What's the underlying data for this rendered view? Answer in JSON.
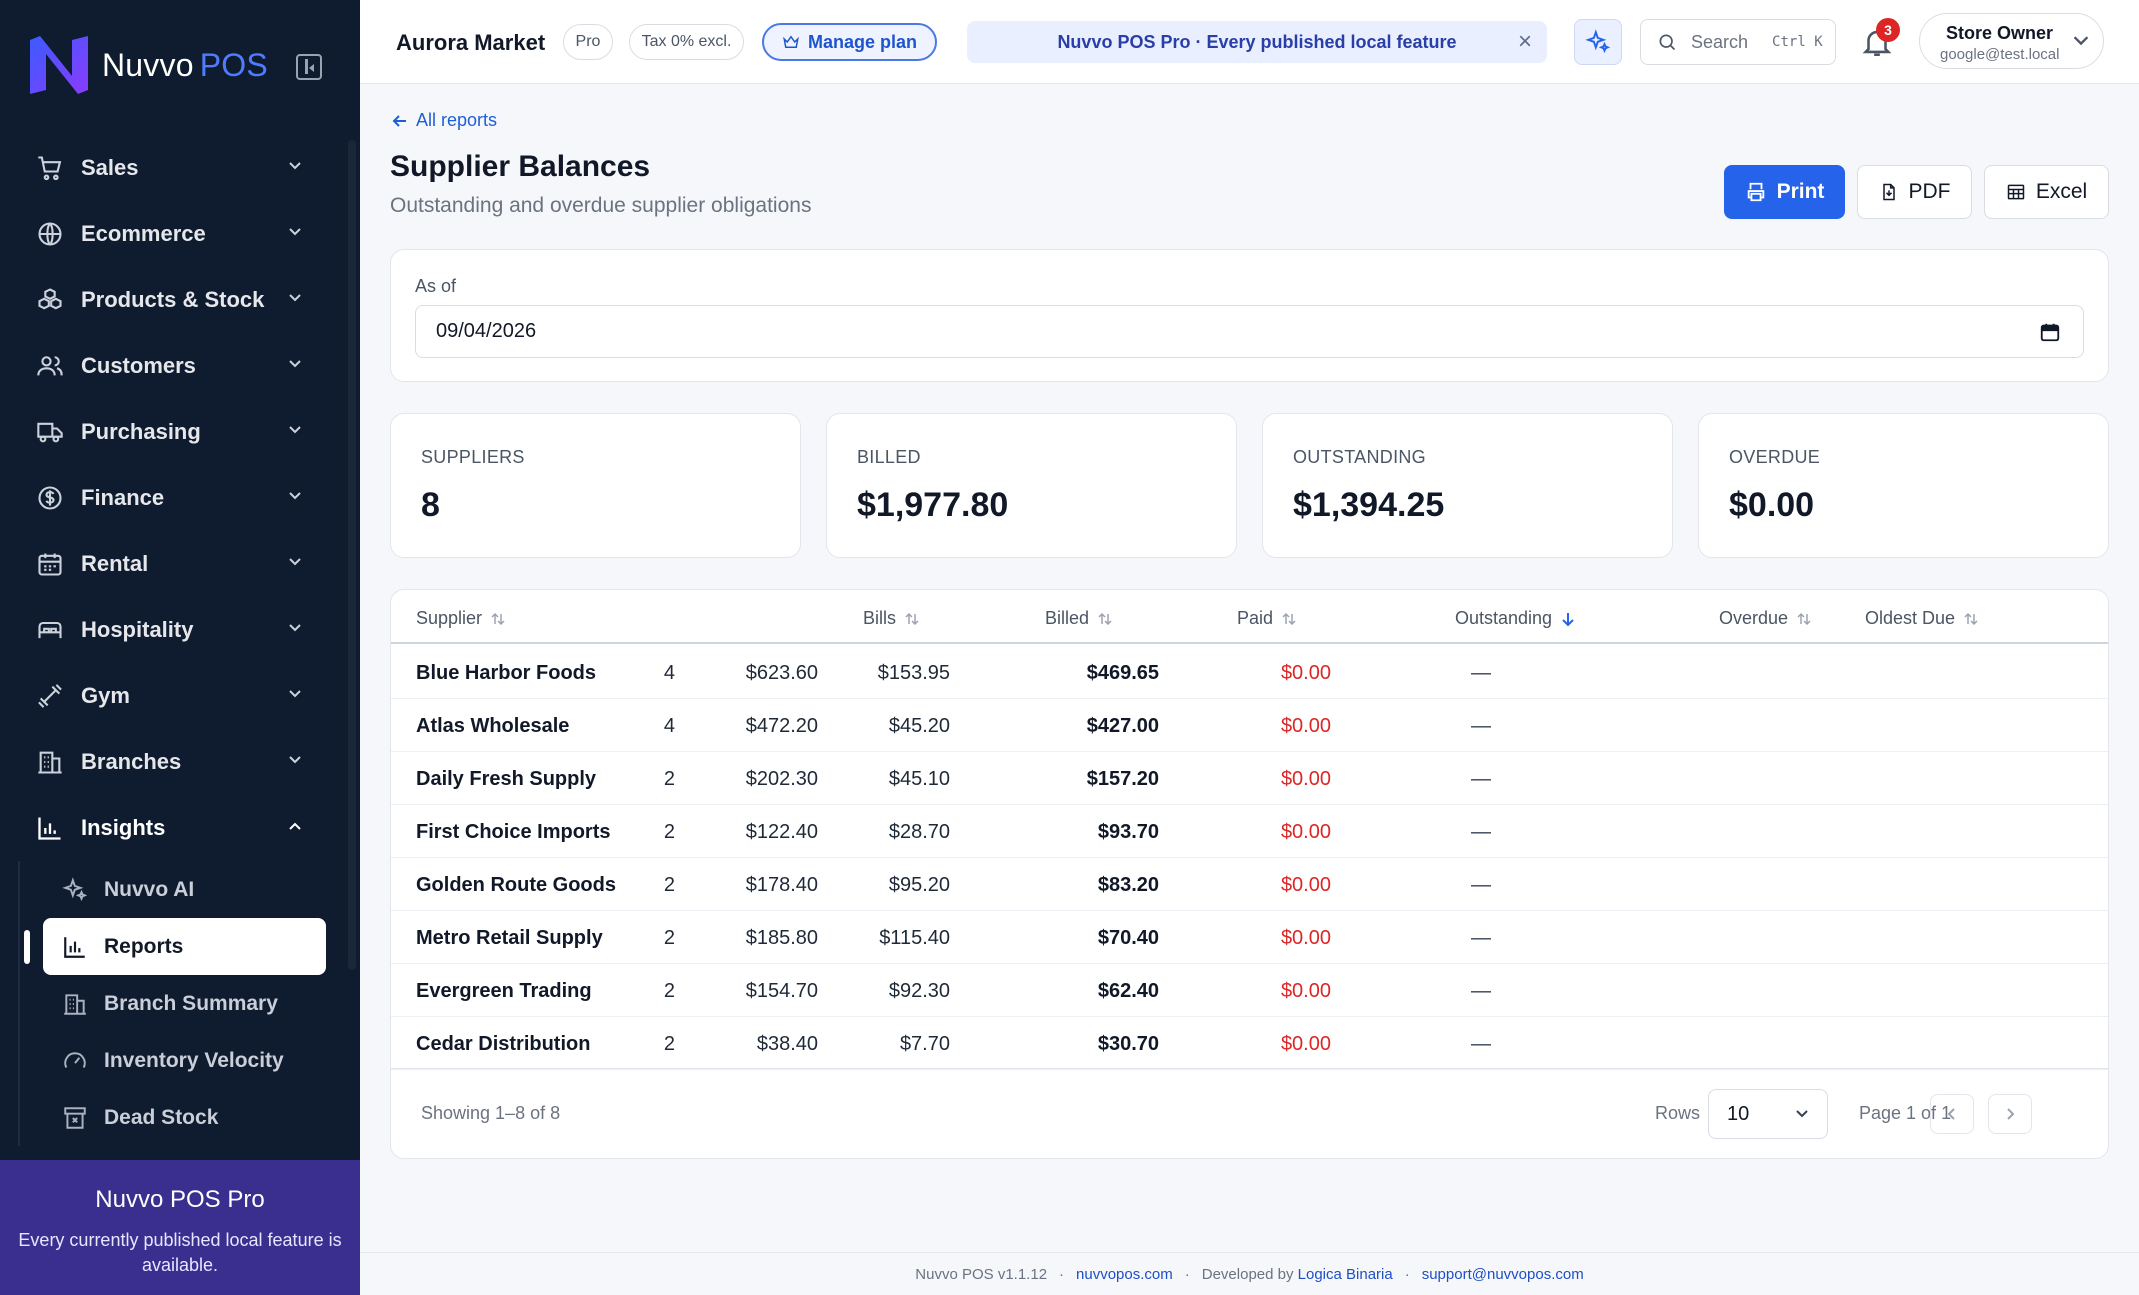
{
  "brand": {
    "name": "Nuvvo",
    "suffix": "POS"
  },
  "sidebar": {
    "items": [
      {
        "label": "Sales",
        "icon": "cart-icon"
      },
      {
        "label": "Ecommerce",
        "icon": "globe-icon"
      },
      {
        "label": "Products & Stock",
        "icon": "boxes-icon"
      },
      {
        "label": "Customers",
        "icon": "users-icon"
      },
      {
        "label": "Purchasing",
        "icon": "truck-icon"
      },
      {
        "label": "Finance",
        "icon": "dollar-icon"
      },
      {
        "label": "Rental",
        "icon": "calendar-icon"
      },
      {
        "label": "Hospitality",
        "icon": "bed-icon"
      },
      {
        "label": "Gym",
        "icon": "dumbbell-icon"
      },
      {
        "label": "Branches",
        "icon": "building-icon"
      },
      {
        "label": "Insights",
        "icon": "chart-icon"
      }
    ],
    "insights_sub": [
      {
        "label": "Nuvvo AI",
        "icon": "sparkles-icon"
      },
      {
        "label": "Reports",
        "icon": "bar-chart-icon"
      },
      {
        "label": "Branch Summary",
        "icon": "building-icon"
      },
      {
        "label": "Inventory Velocity",
        "icon": "gauge-icon"
      },
      {
        "label": "Dead Stock",
        "icon": "archive-x-icon"
      }
    ],
    "promo": {
      "title": "Nuvvo POS Pro",
      "text": "Every currently published local feature is available."
    }
  },
  "topbar": {
    "store": "Aurora Market",
    "plan_pill": "Pro",
    "tax_pill": "Tax 0% excl.",
    "manage_plan": "Manage plan",
    "banner": "Nuvvo POS Pro · Every published local feature",
    "banner_close": "×",
    "search_placeholder": "Search",
    "search_shortcut": "Ctrl K",
    "notifications": "3",
    "user_name": "Store Owner",
    "user_email": "google@test.local"
  },
  "page": {
    "back": "All reports",
    "title": "Supplier Balances",
    "subtitle": "Outstanding and overdue supplier obligations",
    "actions": {
      "print": "Print",
      "pdf": "PDF",
      "excel": "Excel"
    },
    "filter": {
      "label": "As of",
      "value": "09/04/2026"
    }
  },
  "stats": [
    {
      "label": "SUPPLIERS",
      "value": "8"
    },
    {
      "label": "BILLED",
      "value": "$1,977.80"
    },
    {
      "label": "OUTSTANDING",
      "value": "$1,394.25"
    },
    {
      "label": "OVERDUE",
      "value": "$0.00"
    }
  ],
  "table": {
    "columns": [
      "Supplier",
      "Bills",
      "Billed",
      "Paid",
      "Outstanding",
      "Overdue",
      "Oldest Due"
    ],
    "rows": [
      [
        "Blue Harbor Foods",
        "4",
        "$623.60",
        "$153.95",
        "$469.65",
        "$0.00",
        "—"
      ],
      [
        "Atlas Wholesale",
        "4",
        "$472.20",
        "$45.20",
        "$427.00",
        "$0.00",
        "—"
      ],
      [
        "Daily Fresh Supply",
        "2",
        "$202.30",
        "$45.10",
        "$157.20",
        "$0.00",
        "—"
      ],
      [
        "First Choice Imports",
        "2",
        "$122.40",
        "$28.70",
        "$93.70",
        "$0.00",
        "—"
      ],
      [
        "Golden Route Goods",
        "2",
        "$178.40",
        "$95.20",
        "$83.20",
        "$0.00",
        "—"
      ],
      [
        "Metro Retail Supply",
        "2",
        "$185.80",
        "$115.40",
        "$70.40",
        "$0.00",
        "—"
      ],
      [
        "Evergreen Trading",
        "2",
        "$154.70",
        "$92.30",
        "$62.40",
        "$0.00",
        "—"
      ],
      [
        "Cedar Distribution",
        "2",
        "$38.40",
        "$7.70",
        "$30.70",
        "$0.00",
        "—"
      ]
    ],
    "showing": "Showing 1–8 of 8",
    "rows_label": "Rows",
    "rows_value": "10",
    "page_of": "Page 1 of 1"
  },
  "footer": {
    "version": "Nuvvo POS v1.1.12",
    "site": "nuvvopos.com",
    "dev_label": "Developed by",
    "dev": "Logica Binaria",
    "support": "support@nuvvopos.com",
    "sep": "·"
  },
  "colors": {
    "sidebar": "#0f1b2e",
    "accent": "#2563eb",
    "danger": "#dc2626",
    "promo": "#3a2f8f"
  }
}
